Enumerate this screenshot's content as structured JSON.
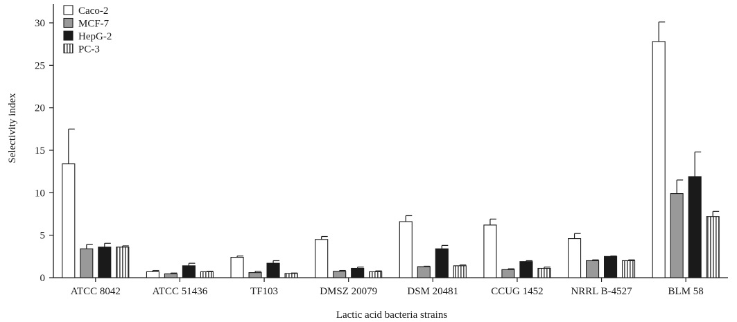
{
  "chart_data": {
    "type": "bar",
    "title": "",
    "xlabel": "Lactic acid bacteria strains",
    "ylabel": "Selectivity index",
    "ylim": [
      0,
      32
    ],
    "yticks": [
      0,
      5,
      10,
      15,
      20,
      25,
      30
    ],
    "ytick_labels": [
      "0",
      "5",
      "10",
      "15",
      "20",
      "25",
      "30"
    ],
    "grid": false,
    "legend_position": "top-left",
    "categories": [
      "ATCC 8042",
      "ATCC 51436",
      "TF103",
      "DMSZ 20079",
      "DSM 20481",
      "CCUG 1452",
      "NRRL B-4527",
      "BLM 58"
    ],
    "series": [
      {
        "name": "Caco-2",
        "fill": "#ffffff",
        "pattern": "solid",
        "values": [
          13.4,
          0.7,
          2.4,
          4.5,
          6.6,
          6.2,
          4.6,
          27.8
        ],
        "errors": [
          4.1,
          0.15,
          0.15,
          0.35,
          0.7,
          0.7,
          0.6,
          2.3
        ]
      },
      {
        "name": "MCF-7",
        "fill": "#999999",
        "pattern": "solid",
        "values": [
          3.4,
          0.45,
          0.6,
          0.75,
          1.3,
          0.95,
          2.0,
          9.9
        ],
        "errors": [
          0.5,
          0.1,
          0.15,
          0.1,
          0.05,
          0.1,
          0.1,
          1.6
        ]
      },
      {
        "name": "HepG-2",
        "fill": "#1a1a1a",
        "pattern": "solid",
        "values": [
          3.6,
          1.4,
          1.7,
          1.1,
          3.4,
          1.9,
          2.5,
          11.9
        ],
        "errors": [
          0.45,
          0.3,
          0.3,
          0.15,
          0.4,
          0.1,
          0.05,
          2.9
        ]
      },
      {
        "name": "PC-3",
        "fill": "#ffffff",
        "pattern": "vertical-stripes",
        "values": [
          3.6,
          0.7,
          0.5,
          0.7,
          1.4,
          1.1,
          2.0,
          7.2
        ],
        "errors": [
          0.15,
          0.05,
          0.05,
          0.1,
          0.1,
          0.15,
          0.1,
          0.6
        ]
      }
    ]
  }
}
